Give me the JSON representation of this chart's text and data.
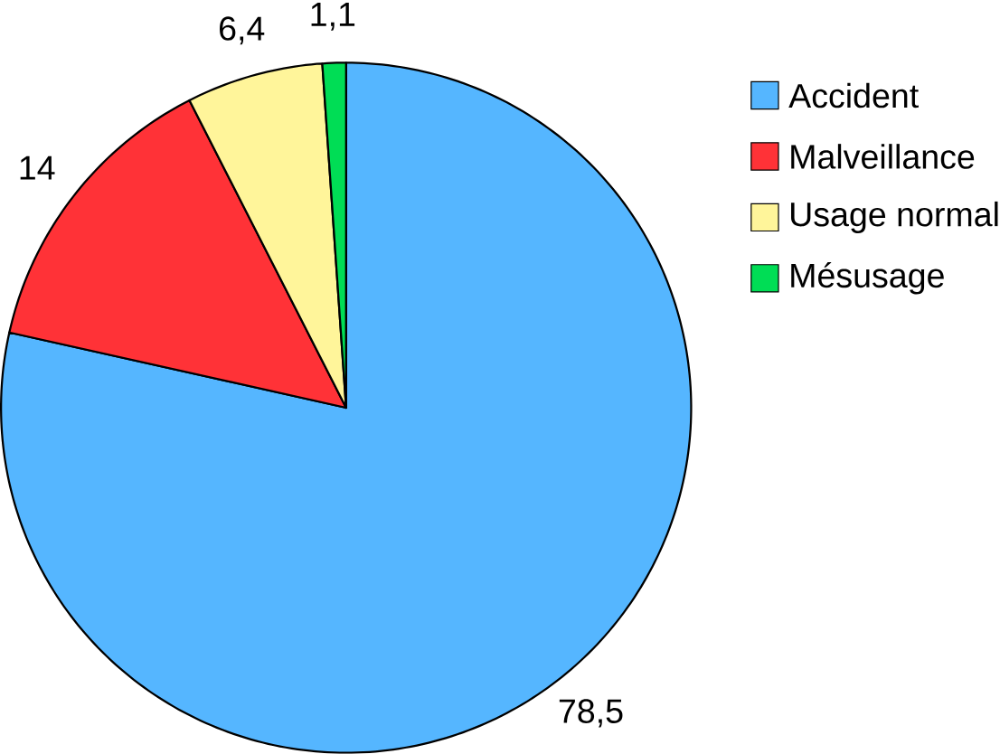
{
  "chart_data": {
    "type": "pie",
    "categories": [
      "Accident",
      "Malveillance",
      "Usage normal",
      "Mésusage"
    ],
    "values": [
      78.5,
      14,
      6.4,
      1.1
    ],
    "colors": [
      "#55b6ff",
      "#ff3237",
      "#fff59a",
      "#00dd55"
    ],
    "value_labels": [
      "78,5",
      "14",
      "6,4",
      "1,1"
    ],
    "legend": "right"
  }
}
